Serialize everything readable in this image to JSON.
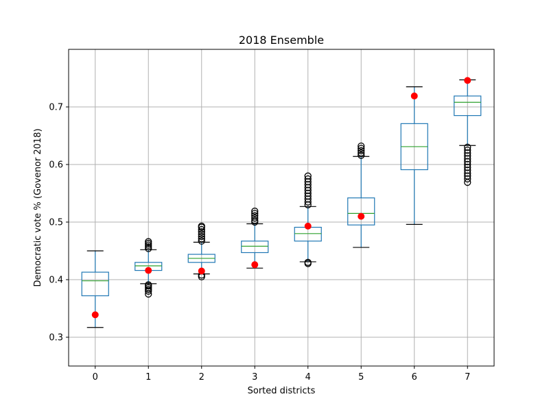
{
  "chart_data": {
    "type": "box",
    "title": "2018 Ensemble",
    "xlabel": "Sorted districts",
    "ylabel": "Democratic vote % (Govenor 2018)",
    "categories": [
      "0",
      "1",
      "2",
      "3",
      "4",
      "5",
      "6",
      "7"
    ],
    "ylim": [
      0.25,
      0.8
    ],
    "yticks": [
      0.3,
      0.4,
      0.5,
      0.6,
      0.7
    ],
    "ytick_labels": [
      "0.3",
      "0.4",
      "0.5",
      "0.6",
      "0.7"
    ],
    "grid": true,
    "boxes": [
      {
        "label": "0",
        "whislo": 0.317,
        "q1": 0.372,
        "med": 0.398,
        "q3": 0.413,
        "whishi": 0.45,
        "fliers_low": [],
        "fliers_high": []
      },
      {
        "label": "1",
        "whislo": 0.393,
        "q1": 0.416,
        "med": 0.424,
        "q3": 0.43,
        "whishi": 0.452,
        "fliers_low": [
          0.375,
          0.38,
          0.383,
          0.386,
          0.389,
          0.391
        ],
        "fliers_high": [
          0.454,
          0.457,
          0.46,
          0.463,
          0.466
        ]
      },
      {
        "label": "2",
        "whislo": 0.41,
        "q1": 0.43,
        "med": 0.437,
        "q3": 0.444,
        "whishi": 0.465,
        "fliers_low": [
          0.405,
          0.408
        ],
        "fliers_high": [
          0.467,
          0.471,
          0.475,
          0.479,
          0.483,
          0.487,
          0.491,
          0.493
        ]
      },
      {
        "label": "3",
        "whislo": 0.42,
        "q1": 0.447,
        "med": 0.458,
        "q3": 0.467,
        "whishi": 0.497,
        "fliers_low": [],
        "fliers_high": [
          0.5,
          0.503,
          0.507,
          0.511,
          0.515,
          0.519
        ]
      },
      {
        "label": "4",
        "whislo": 0.431,
        "q1": 0.467,
        "med": 0.48,
        "q3": 0.491,
        "whishi": 0.527,
        "fliers_low": [
          0.428,
          0.43
        ],
        "fliers_high": [
          0.53,
          0.535,
          0.54,
          0.545,
          0.55,
          0.555,
          0.56,
          0.565,
          0.57,
          0.575,
          0.58
        ]
      },
      {
        "label": "5",
        "whislo": 0.456,
        "q1": 0.495,
        "med": 0.515,
        "q3": 0.542,
        "whishi": 0.614,
        "fliers_low": [],
        "fliers_high": [
          0.616,
          0.62,
          0.624,
          0.628,
          0.632
        ]
      },
      {
        "label": "6",
        "whislo": 0.496,
        "q1": 0.591,
        "med": 0.631,
        "q3": 0.671,
        "whishi": 0.735,
        "fliers_low": [],
        "fliers_high": []
      },
      {
        "label": "7",
        "whislo": 0.633,
        "q1": 0.685,
        "med": 0.708,
        "q3": 0.719,
        "whishi": 0.747,
        "fliers_low": [
          0.569,
          0.575,
          0.58,
          0.585,
          0.59,
          0.595,
          0.6,
          0.605,
          0.61,
          0.615,
          0.62,
          0.625,
          0.63
        ],
        "fliers_high": []
      }
    ],
    "actual_points": [
      0.339,
      0.416,
      0.415,
      0.426,
      0.493,
      0.51,
      0.719,
      0.746
    ],
    "colors": {
      "box": "#1f77b4",
      "median": "#2ca02c",
      "whisker": "#1f77b4",
      "cap": "#000000",
      "flier": "#000000",
      "actual": "#ff0000",
      "grid": "#b0b0b0"
    }
  }
}
